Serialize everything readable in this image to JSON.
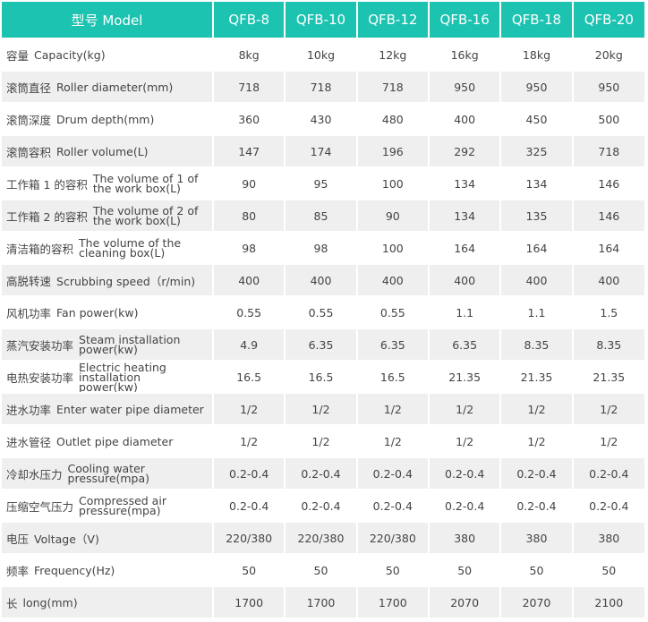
{
  "table": {
    "header": [
      "型号 Model",
      "QFB-8",
      "QFB-10",
      "QFB-12",
      "QFB-16",
      "QFB-18",
      "QFB-20"
    ],
    "rows": [
      {
        "zh": "容量",
        "en": "Capacity(kg)",
        "values": [
          "8kg",
          "10kg",
          "12kg",
          "16kg",
          "18kg",
          "20kg"
        ]
      },
      {
        "zh": "滚筒直径",
        "en": "Roller diameter(mm)",
        "values": [
          "718",
          "718",
          "718",
          "950",
          "950",
          "950"
        ]
      },
      {
        "zh": "滚筒深度",
        "en": "Drum depth(mm)",
        "values": [
          "360",
          "430",
          "480",
          "400",
          "450",
          "500"
        ]
      },
      {
        "zh": "滚筒容积",
        "en": "Roller volume(L)",
        "values": [
          "147",
          "174",
          "196",
          "292",
          "325",
          "718"
        ]
      },
      {
        "zh": "工作箱 1 的容积",
        "en": "The volume of 1 of the work box(L)",
        "values": [
          "90",
          "95",
          "100",
          "134",
          "134",
          "146"
        ]
      },
      {
        "zh": "工作箱 2 的容积",
        "en": "The volume of 2 of the work box(L)",
        "values": [
          "80",
          "85",
          "90",
          "134",
          "135",
          "146"
        ]
      },
      {
        "zh": "清洁箱的容积",
        "en": "The volume of the cleaning box(L)",
        "values": [
          "98",
          "98",
          "100",
          "164",
          "164",
          "164"
        ]
      },
      {
        "zh": "高脱转速",
        "en": "Scrubbing speed（r/min)",
        "values": [
          "400",
          "400",
          "400",
          "400",
          "400",
          "400"
        ]
      },
      {
        "zh": "风机功率",
        "en": "Fan power(kw)",
        "values": [
          "0.55",
          "0.55",
          "0.55",
          "1.1",
          "1.1",
          "1.5"
        ]
      },
      {
        "zh": "蒸汽安装功率",
        "en": "Steam installation power(kw)",
        "values": [
          "4.9",
          "6.35",
          "6.35",
          "6.35",
          "8.35",
          "8.35"
        ]
      },
      {
        "zh": "电热安装功率",
        "en": "Electric heating installation power(kw)",
        "values": [
          "16.5",
          "16.5",
          "16.5",
          "21.35",
          "21.35",
          "21.35"
        ]
      },
      {
        "zh": "进水功率",
        "en": "Enter water pipe diameter",
        "values": [
          "1/2",
          "1/2",
          "1/2",
          "1/2",
          "1/2",
          "1/2"
        ]
      },
      {
        "zh": "进水管径",
        "en": "Outlet pipe diameter",
        "values": [
          "1/2",
          "1/2",
          "1/2",
          "1/2",
          "1/2",
          "1/2"
        ]
      },
      {
        "zh": "冷却水压力",
        "en": "Cooling water pressure(mpa)",
        "values": [
          "0.2-0.4",
          "0.2-0.4",
          "0.2-0.4",
          "0.2-0.4",
          "0.2-0.4",
          "0.2-0.4"
        ]
      },
      {
        "zh": "压缩空气压力",
        "en": "Compressed air pressure(mpa)",
        "values": [
          "0.2-0.4",
          "0.2-0.4",
          "0.2-0.4",
          "0.2-0.4",
          "0.2-0.4",
          "0.2-0.4"
        ]
      },
      {
        "zh": "电压",
        "en": "Voltage（V)",
        "values": [
          "220/380",
          "220/380",
          "220/380",
          "380",
          "380",
          "380"
        ]
      },
      {
        "zh": "频率",
        "en": "Frequency(Hz)",
        "values": [
          "50",
          "50",
          "50",
          "50",
          "50",
          "50"
        ]
      },
      {
        "zh": "长",
        "en": "long(mm)",
        "values": [
          "1700",
          "1700",
          "1700",
          "2070",
          "2070",
          "2100"
        ]
      }
    ]
  },
  "colors": {
    "header_bg": "#1cc3b1",
    "header_text": "#ffffff",
    "row_alt_bg": "#efefef",
    "text": "#444444"
  }
}
